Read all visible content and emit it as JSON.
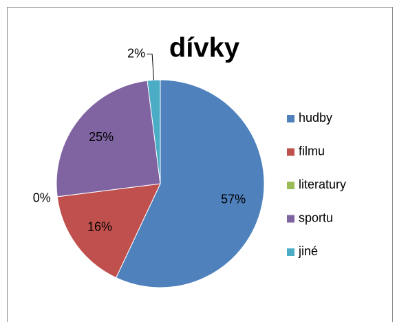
{
  "chart_data": {
    "type": "pie",
    "title": "dívky",
    "categories": [
      "hudby",
      "filmu",
      "literatury",
      "sportu",
      "jiné"
    ],
    "values": [
      57,
      16,
      0,
      25,
      2
    ],
    "value_labels": [
      "57%",
      "16%",
      "0%",
      "25%",
      "2%"
    ],
    "colors": [
      "#4f81bd",
      "#c0504d",
      "#9bbb59",
      "#8064a2",
      "#4bacc6"
    ],
    "legend": "right"
  }
}
